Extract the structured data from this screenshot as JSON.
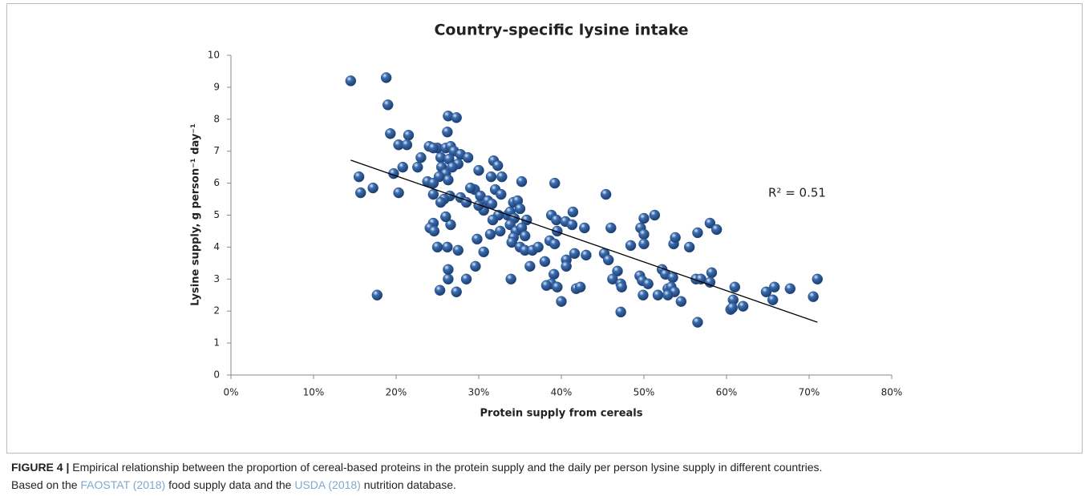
{
  "chart_data": {
    "type": "scatter",
    "title": "Country-specific lysine intake",
    "xlabel": "Protein supply from cereals",
    "ylabel": "Lysine supply, g person⁻¹ day⁻¹",
    "annotation": "R² = 0.51",
    "color": "#3a6db0",
    "xlim": [
      0,
      80
    ],
    "xticks": [
      {
        "value": 0,
        "label": "0%"
      },
      {
        "value": 10,
        "label": "10%"
      },
      {
        "value": 20,
        "label": "20%"
      },
      {
        "value": 30,
        "label": "30%"
      },
      {
        "value": 40,
        "label": "40%"
      },
      {
        "value": 50,
        "label": "50%"
      },
      {
        "value": 60,
        "label": "60%"
      },
      {
        "value": 70,
        "label": "70%"
      },
      {
        "value": 80,
        "label": "80%"
      }
    ],
    "ylim": [
      0,
      10
    ],
    "yticks": [
      0,
      1,
      2,
      3,
      4,
      5,
      6,
      7,
      8,
      9,
      10
    ],
    "grid": false,
    "x": [
      14.5,
      18.8,
      19,
      26.3,
      27.3,
      26.2,
      19.3,
      21.5,
      20.3,
      21.3,
      25,
      24,
      24.5,
      26,
      26.6,
      27,
      27.8,
      28.7,
      23,
      22.6,
      25.4,
      26.4,
      27.5,
      26.8,
      25.5,
      20.8,
      30,
      31.8,
      32.3,
      31.5,
      32.8,
      26,
      26.3,
      25.2,
      19.7,
      15.5,
      23.8,
      24.5,
      35.2,
      39.2,
      17.2,
      15.7,
      20.3,
      24.5,
      26.5,
      25.8,
      25.4,
      27.8,
      28.5,
      29.5,
      29,
      30.2,
      31.1,
      32,
      32.7,
      31.6,
      30.6,
      30,
      33.5,
      33.8,
      32.4,
      31.7,
      34.2,
      34.7,
      35,
      35.8,
      34.3,
      33.8,
      34.5,
      35.2,
      35.6,
      34.2,
      34,
      35,
      35.6,
      36.5,
      37.2,
      36.2,
      33.9,
      32.6,
      31.4,
      29.8,
      30.6,
      29.6,
      28.5,
      27.3,
      25.3,
      26.3,
      26.3,
      26.2,
      27.5,
      26.6,
      24.5,
      24.1,
      24.6,
      26,
      25,
      17.7,
      38.8,
      39.4,
      40.5,
      41.4,
      41.3,
      42.8,
      39.5,
      38.6,
      39.2,
      41.6,
      40.6,
      40.6,
      43,
      38,
      39.1,
      38.8,
      38.2,
      39.5,
      40,
      41.8,
      42.3,
      45.4,
      46,
      49.6,
      50,
      51.3,
      50,
      50,
      48.4,
      45.2,
      45.7,
      46.8,
      46.2,
      47.2,
      47.3,
      47.2,
      49.5,
      49.8,
      50.5,
      49.9,
      51.7,
      52.2,
      52.6,
      53.5,
      52.9,
      53.3,
      53.7,
      52.9,
      54.5,
      53.6,
      53.8,
      55.5,
      56.5,
      58,
      58.8,
      58.2,
      56.3,
      56.9,
      58,
      56.5,
      61,
      60.8,
      60.5,
      60.7,
      62,
      64.8,
      65.8,
      65.6,
      67.7,
      70.5,
      71
    ],
    "values": [
      9.2,
      9.3,
      8.45,
      8.1,
      8.05,
      7.6,
      7.55,
      7.5,
      7.2,
      7.2,
      7.1,
      7.15,
      7.1,
      7.1,
      7.15,
      7,
      6.9,
      6.8,
      6.8,
      6.5,
      6.8,
      6.75,
      6.6,
      6.5,
      6.5,
      6.5,
      6.4,
      6.7,
      6.55,
      6.2,
      6.2,
      6.3,
      6.1,
      6.2,
      6.3,
      6.2,
      6.05,
      6,
      6.05,
      6,
      5.85,
      5.7,
      5.7,
      5.65,
      5.6,
      5.5,
      5.4,
      5.55,
      5.4,
      5.8,
      5.85,
      5.6,
      5.45,
      5.8,
      5.65,
      5.35,
      5.15,
      5.3,
      5,
      5.1,
      5,
      4.85,
      5.4,
      5.45,
      5.2,
      4.85,
      4.9,
      4.7,
      4.5,
      4.6,
      4.35,
      4.3,
      4.15,
      4,
      3.9,
      3.9,
      4,
      3.4,
      3,
      4.5,
      4.4,
      4.25,
      3.85,
      3.4,
      3,
      2.6,
      2.65,
      3,
      3.3,
      4,
      3.9,
      4.7,
      4.75,
      4.6,
      4.5,
      4.95,
      4,
      2.5,
      5,
      4.85,
      4.8,
      5.1,
      4.7,
      4.6,
      4.5,
      4.2,
      4.1,
      3.8,
      3.6,
      3.4,
      3.75,
      3.55,
      3.15,
      2.85,
      2.8,
      2.75,
      2.3,
      2.7,
      2.75,
      5.65,
      4.6,
      4.6,
      4.9,
      5,
      4.4,
      4.1,
      4.05,
      3.8,
      3.6,
      3.25,
      3,
      2.85,
      2.75,
      1.97,
      3.1,
      2.95,
      2.85,
      2.5,
      2.5,
      3.3,
      3.15,
      3.05,
      2.7,
      2.75,
      2.6,
      2.5,
      2.3,
      4.1,
      4.3,
      4,
      4.45,
      4.75,
      4.55,
      3.2,
      3,
      3,
      2.9,
      1.65,
      2.75,
      2.35,
      2.05,
      2.1,
      2.15,
      2.6,
      2.75,
      2.35,
      2.7,
      2.45,
      3
    ],
    "trendline": {
      "x": [
        14.5,
        71
      ],
      "y": [
        6.72,
        1.65
      ]
    }
  },
  "caption": {
    "label": "FIGURE 4 |",
    "text": "Empirical relationship between the proportion of cereal-based proteins in the protein supply and the daily per person lysine supply in different countries.",
    "line2": [
      "Based on the",
      "FAOSTAT (2018)",
      "food supply data and the",
      "USDA (2018)",
      "nutrition database."
    ]
  }
}
